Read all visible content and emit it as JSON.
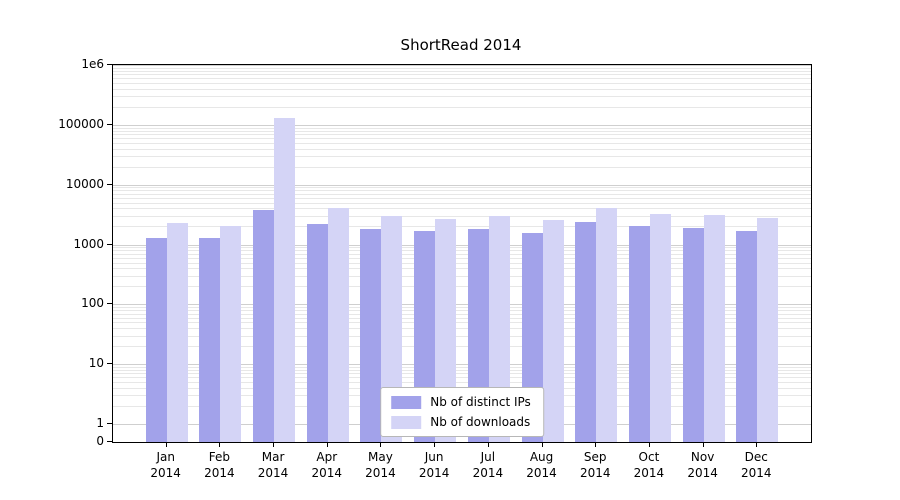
{
  "title": "ShortRead 2014",
  "chart_data": {
    "type": "bar",
    "title": "ShortRead 2014",
    "categories": [
      "Jan",
      "Feb",
      "Mar",
      "Apr",
      "May",
      "Jun",
      "Jul",
      "Aug",
      "Sep",
      "Oct",
      "Nov",
      "Dec"
    ],
    "year": "2014",
    "series": [
      {
        "name": "Nb of distinct IPs",
        "color": "#a2a2ea",
        "values": [
          1300,
          1300,
          3800,
          2200,
          1800,
          1700,
          1800,
          1550,
          2400,
          2050,
          1900,
          1650
        ]
      },
      {
        "name": "Nb of downloads",
        "color": "#d4d4f6",
        "values": [
          2250,
          2000,
          130000,
          4100,
          3000,
          2650,
          3050,
          2600,
          4000,
          3250,
          3100,
          2750
        ]
      }
    ],
    "xlabel": "",
    "ylabel": "",
    "yscale": "symlog",
    "ylim": [
      0,
      1000000
    ],
    "yticks": [
      "1e6",
      "100000",
      "10000",
      "1000",
      "100",
      "10",
      "1",
      "0"
    ],
    "grid": true,
    "legend_position": "lower center"
  }
}
